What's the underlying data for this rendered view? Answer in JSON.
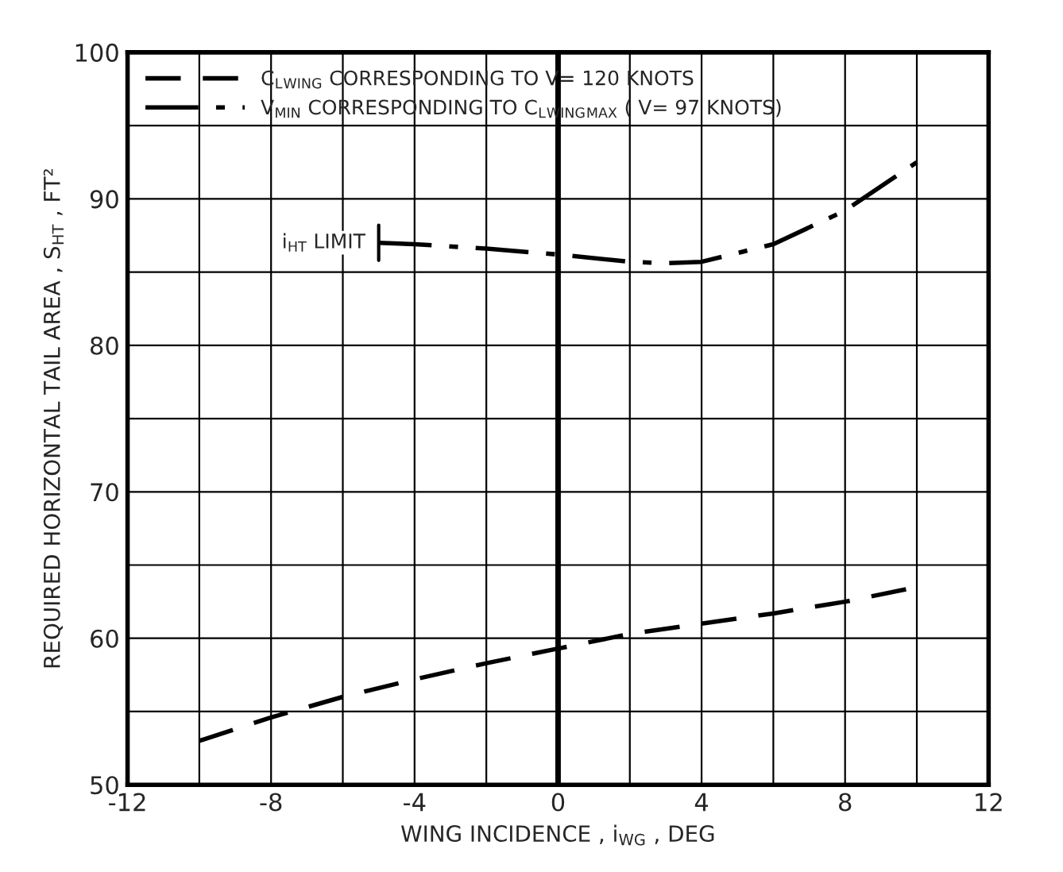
{
  "chart_data": {
    "type": "line",
    "xlabel": "WING INCIDENCE , i$_{WG}$ , DEG",
    "ylabel": "REQUIRED HORIZONTAL TAIL AREA , S$_{HT}$ , FT²",
    "xlim": [
      -12,
      12
    ],
    "xticks": [
      -12,
      -8,
      -4,
      0,
      4,
      8,
      12
    ],
    "ylim": [
      50,
      100
    ],
    "yticks": [
      50,
      60,
      70,
      80,
      90,
      100
    ],
    "grid": true,
    "legend": "top left",
    "marker": "none",
    "series": [
      {
        "name": "C$_{L}$$_{WING}$ CORRESPONDING TO V= 120 KNOTS",
        "color": "#000000",
        "line_style": "dashed",
        "x": [
          -10,
          -8,
          -6,
          -4,
          -2,
          0,
          2,
          4,
          6,
          8,
          10
        ],
        "values": [
          53,
          54.6,
          56,
          57.2,
          58.3,
          59.3,
          60.3,
          61,
          61.7,
          62.5,
          63.5
        ]
      },
      {
        "name": "V$_{MIN}$ CORRESPONDING TO C$_{L}$$_{WING}$$_{MAX}$ ( V= 97 KNOTS)",
        "color": "#000000",
        "line_style": "dashdot",
        "x": [
          -5,
          -4,
          -2,
          0,
          2,
          3,
          4,
          6,
          8,
          10
        ],
        "values": [
          87,
          86.9,
          86.6,
          86.2,
          85.7,
          85.6,
          85.7,
          86.9,
          89.2,
          92.5
        ]
      }
    ],
    "ref_lines": [
      {
        "axis": "x",
        "value": 0,
        "color": "#000000"
      }
    ],
    "annotations": [
      {
        "text": "i$_{HT}$ LIMIT",
        "x": -5,
        "y": 87
      }
    ]
  }
}
